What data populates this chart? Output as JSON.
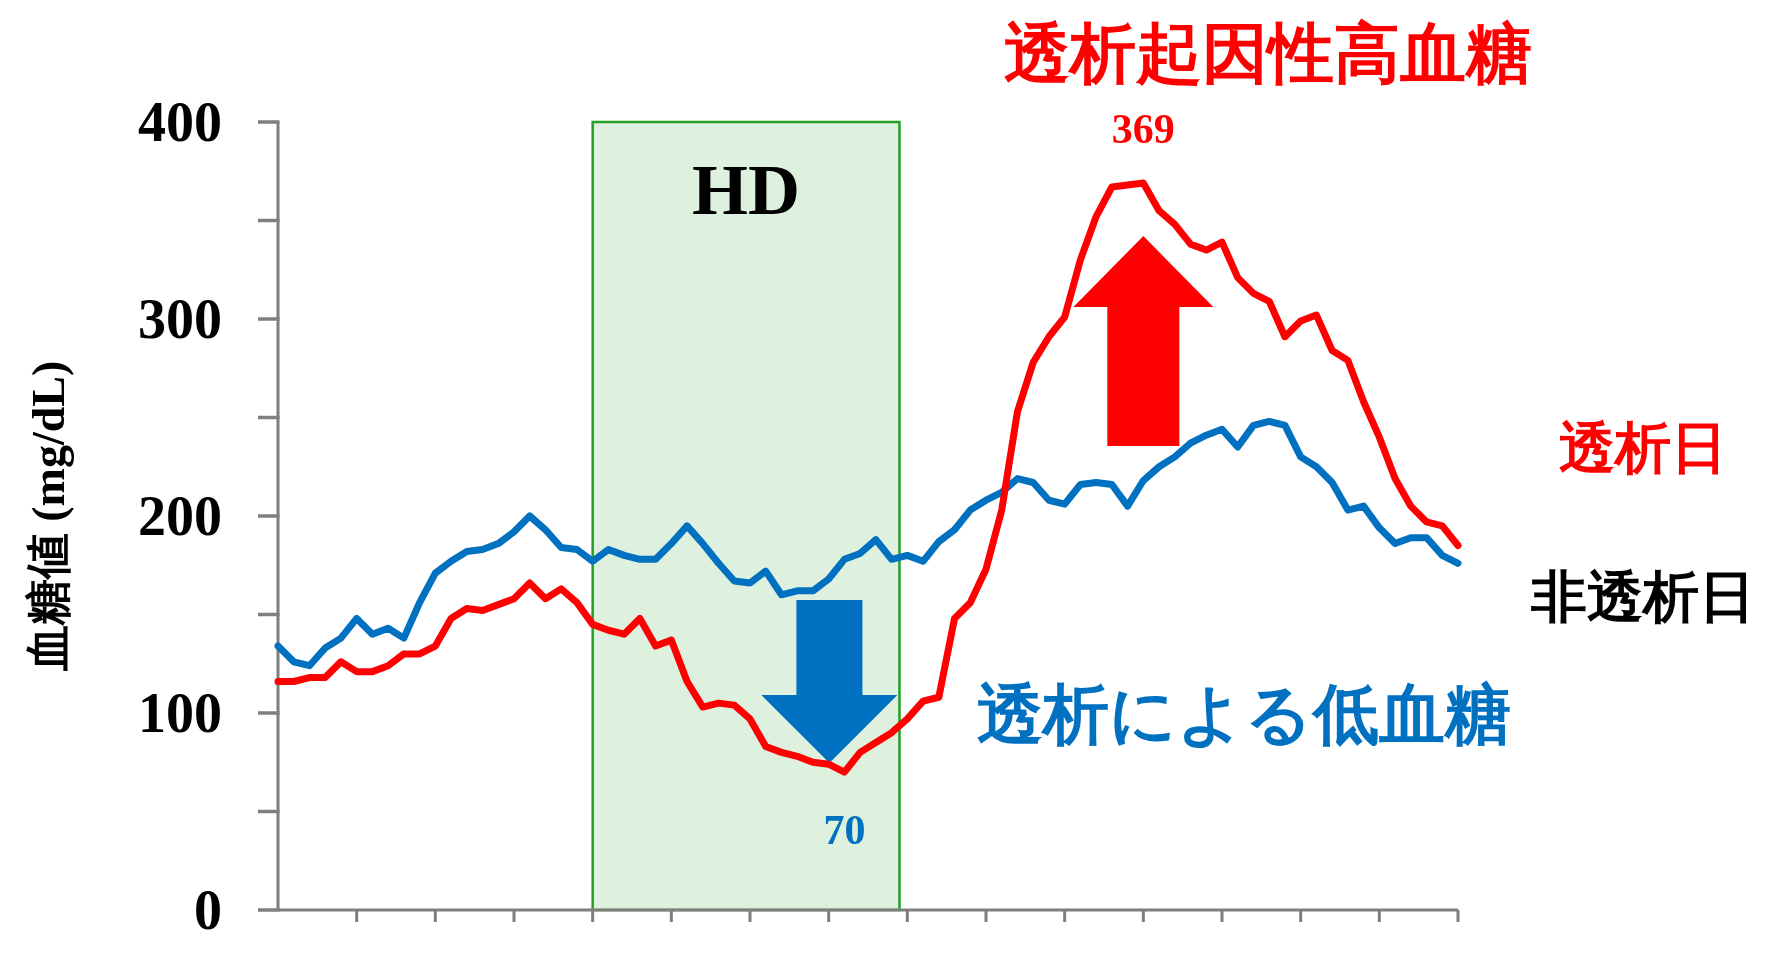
{
  "chart_data": {
    "type": "line",
    "ylabel": "血糖値 (mg/dL)",
    "categories": [
      null,
      null,
      null,
      null,
      null,
      null,
      null,
      null,
      null,
      null,
      null,
      null,
      null,
      null,
      null,
      null,
      null,
      null,
      null,
      null,
      null,
      null,
      null,
      null,
      null,
      null,
      null,
      null,
      null,
      null,
      null,
      null,
      null,
      null,
      null,
      null,
      null,
      null,
      null,
      null,
      null,
      null,
      null,
      null,
      null,
      null,
      null,
      null,
      null,
      null,
      null,
      null,
      null,
      null,
      null,
      null,
      null,
      null,
      null,
      null,
      null,
      null,
      null,
      null,
      null,
      null,
      null,
      null,
      null,
      null,
      null,
      null,
      null,
      null,
      null,
      null
    ],
    "series": [
      {
        "name": "非透析日",
        "color": "#0070c0",
        "values": [
          134,
          126,
          124,
          133,
          138,
          148,
          140,
          143,
          138,
          156,
          171,
          177,
          182,
          183,
          186,
          192,
          200,
          193,
          184,
          183,
          177,
          183,
          180,
          178,
          178,
          186,
          195,
          186,
          176,
          167,
          166,
          172,
          160,
          162,
          162,
          168,
          178,
          181,
          188,
          178,
          180,
          177,
          187,
          193,
          203,
          208,
          212,
          219,
          217,
          208,
          206,
          216,
          217,
          216,
          205,
          218,
          225,
          230,
          237,
          241,
          244,
          235,
          246,
          248,
          246,
          230,
          225,
          217,
          203,
          205,
          194,
          186,
          189,
          189,
          180,
          176
        ]
      },
      {
        "name": "透析日",
        "color": "#ff0000",
        "values": [
          116,
          116,
          118,
          118,
          126,
          121,
          121,
          124,
          130,
          130,
          134,
          148,
          153,
          152,
          155,
          158,
          166,
          158,
          163,
          156,
          145,
          142,
          140,
          148,
          134,
          137,
          116,
          103,
          105,
          104,
          97,
          83,
          80,
          78,
          75,
          74,
          70,
          80,
          85,
          90,
          97,
          106,
          108,
          148,
          156,
          173,
          203,
          253,
          278,
          291,
          301,
          330,
          352,
          367,
          368,
          369,
          355,
          348,
          338,
          335,
          339,
          321,
          313,
          309,
          291,
          299,
          302,
          284,
          279,
          258,
          240,
          219,
          205,
          197,
          195,
          185
        ]
      }
    ],
    "ylim": [
      0,
      400
    ],
    "yticks": [
      0,
      100,
      200,
      300,
      400
    ],
    "tick_labels": "y",
    "annotations": [
      "透析起因性高血糖",
      {
        "text": "369",
        "y": 369
      },
      "透析による低血糖",
      {
        "text": "70",
        "y": 70
      },
      "HD"
    ],
    "line_style": "solid"
  }
}
